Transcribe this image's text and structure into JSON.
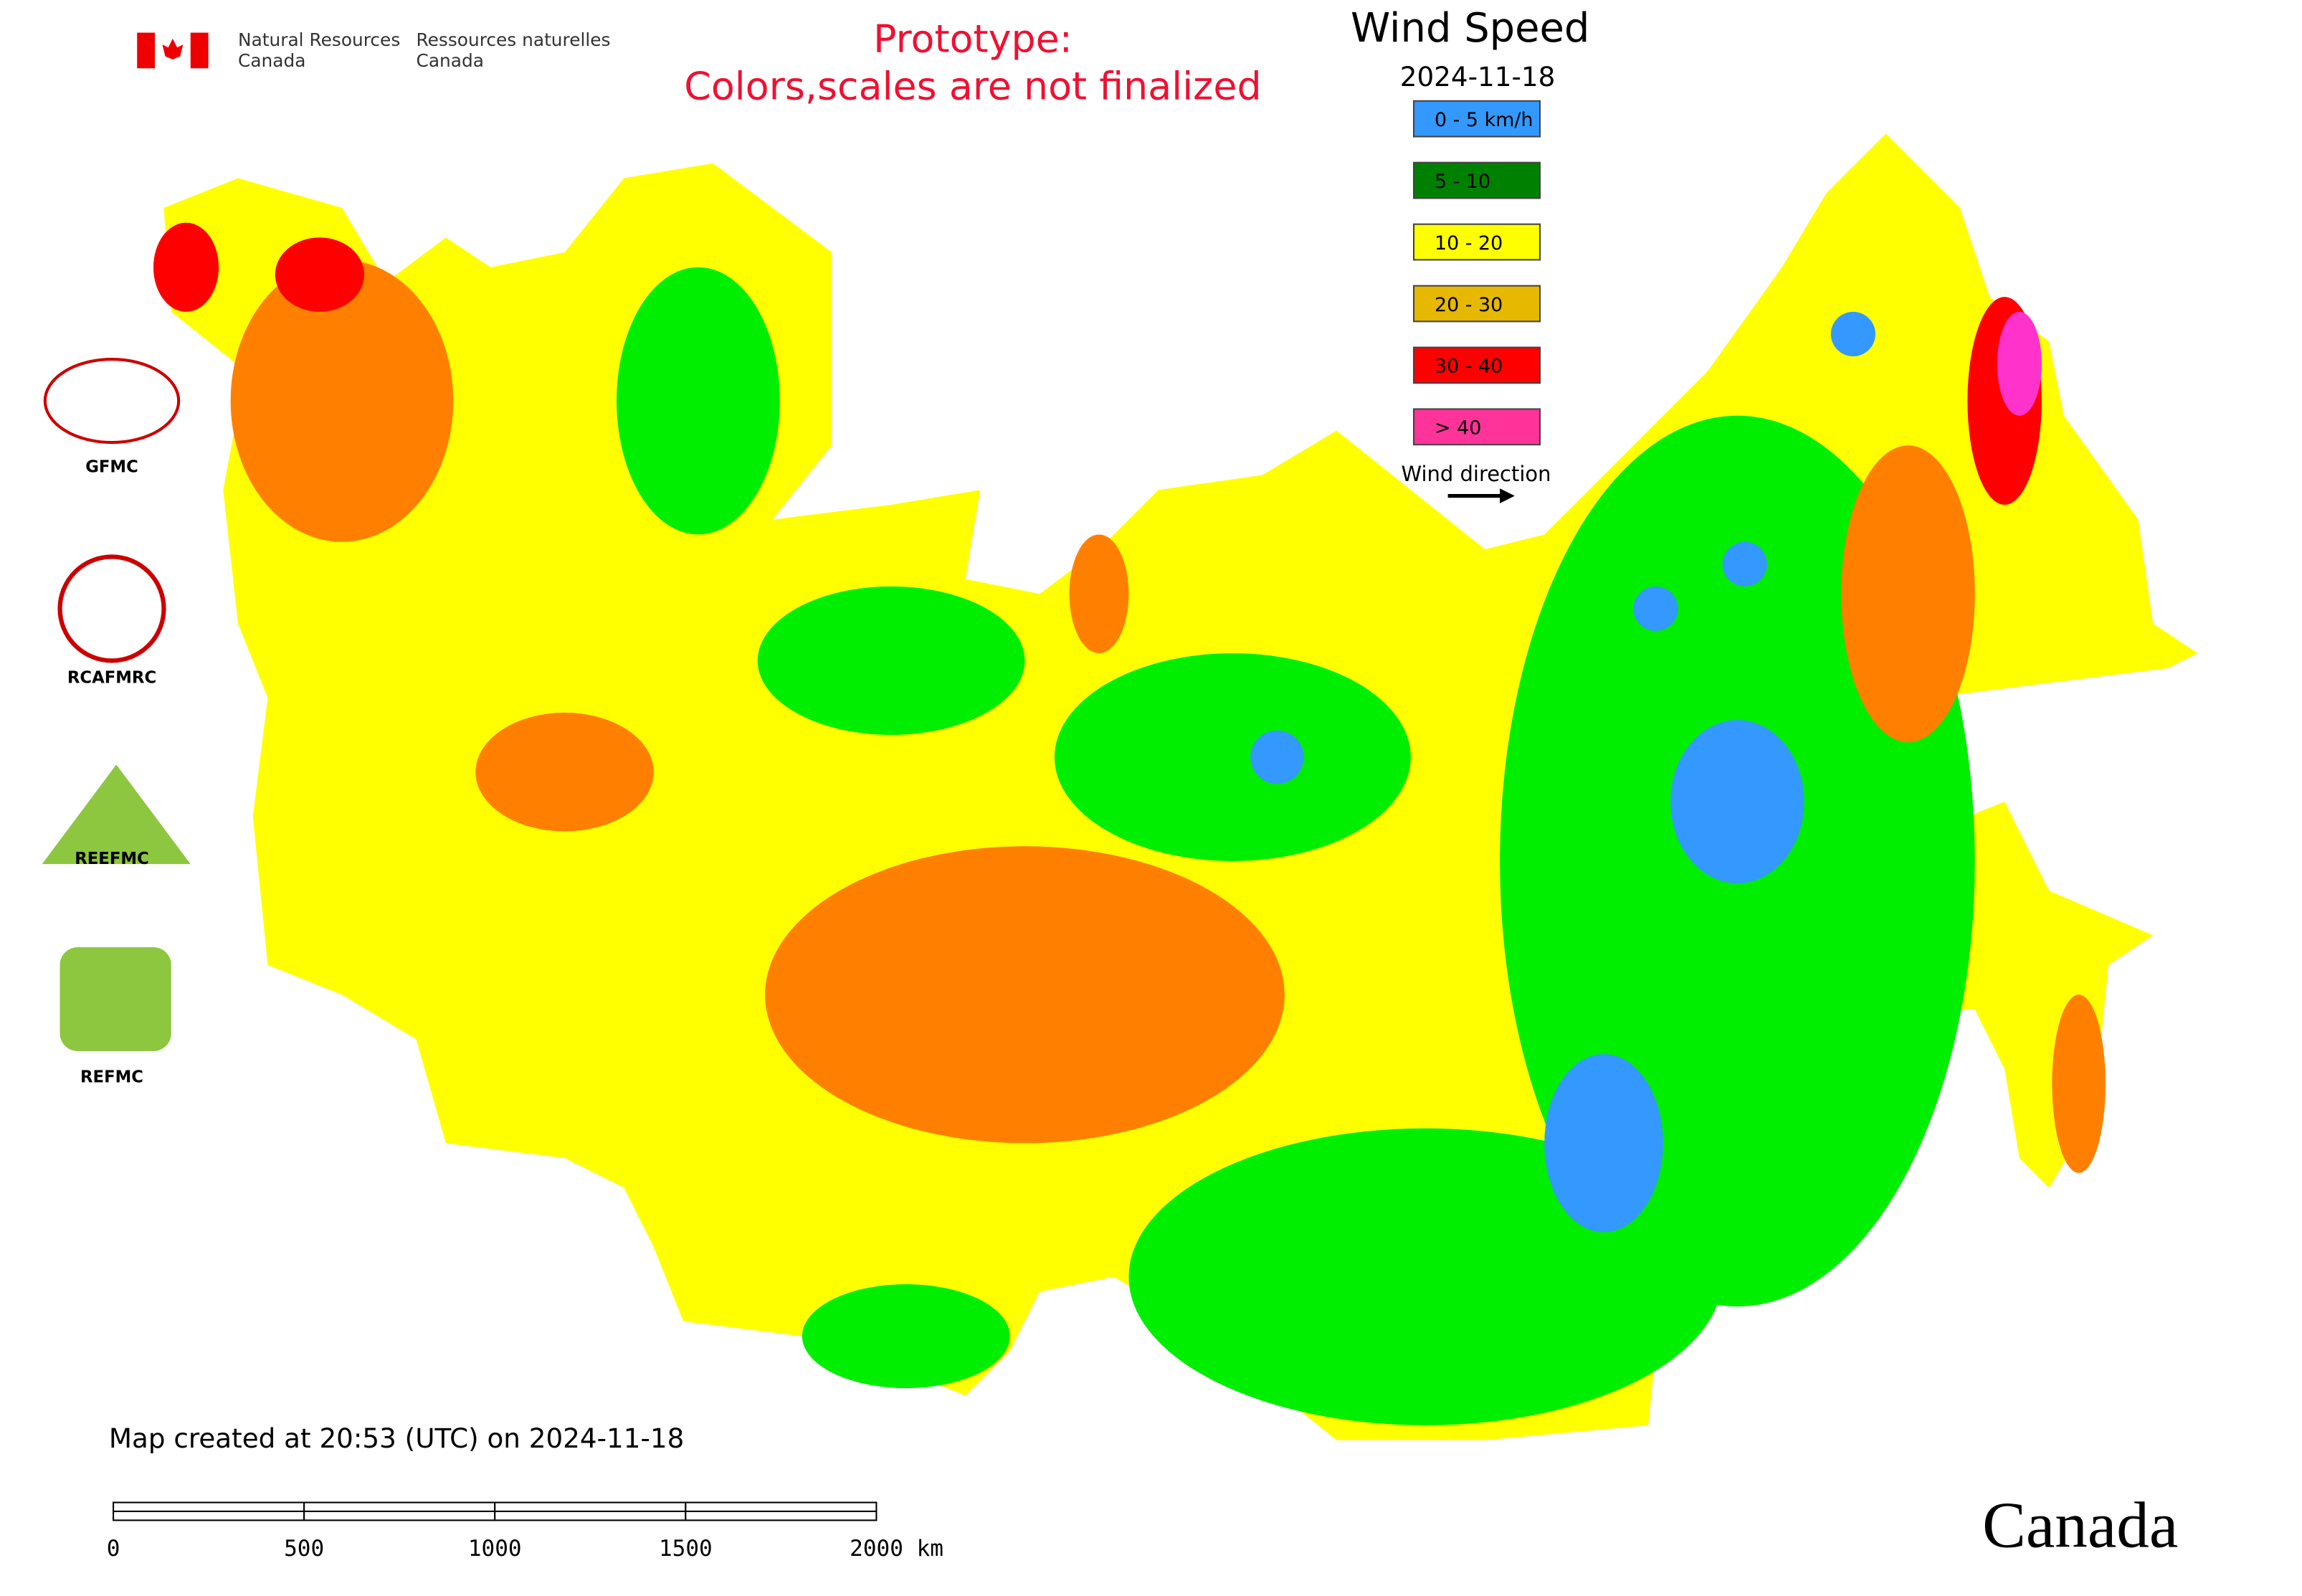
{
  "header": {
    "agency_en": [
      "Natural Resources",
      "Canada"
    ],
    "agency_fr": [
      "Ressources naturelles",
      "Canada"
    ]
  },
  "notice": [
    "Prototype:",
    "Colors,scales are not finalized"
  ],
  "title": "Wind Speed",
  "date": "2024-11-18",
  "legend": [
    {
      "label": "0 - 5 km/h",
      "color": "#3399ff"
    },
    {
      "label": "5 - 10",
      "color": "#008000"
    },
    {
      "label": "10 - 20",
      "color": "#ffff00"
    },
    {
      "label": "20 - 30",
      "color": "#e6b800"
    },
    {
      "label": "30 - 40",
      "color": "#ff0000"
    },
    {
      "label": "> 40",
      "color": "#ff3399"
    }
  ],
  "wind_direction": "Wind direction",
  "logos": [
    "GFMC",
    "RCAFMRC",
    "REEFMC",
    "REFMC"
  ],
  "footer": "Map created at 20:53 (UTC) on 2024-11-18",
  "scale_bar": [
    "0",
    "500",
    "1000",
    "1500",
    "2000 km"
  ],
  "wordmark": "Canada"
}
